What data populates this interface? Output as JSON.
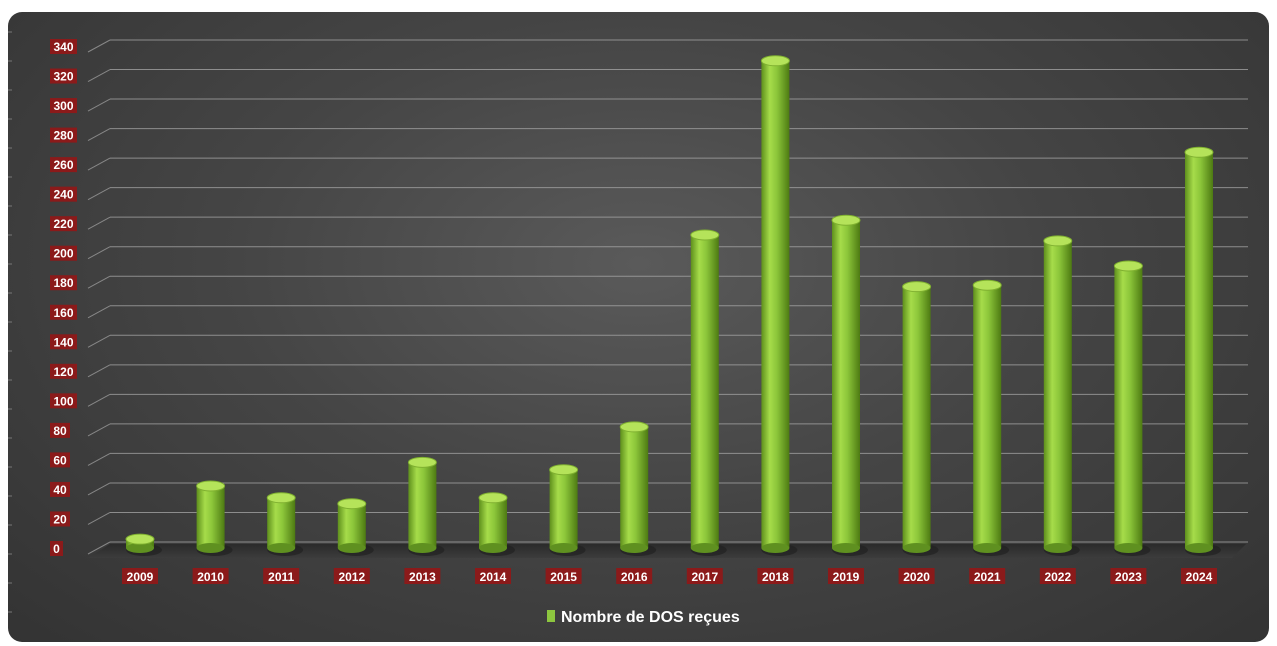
{
  "chart_data": {
    "type": "bar",
    "style": "3d-cylinder",
    "categories": [
      "2009",
      "2010",
      "2011",
      "2012",
      "2013",
      "2014",
      "2015",
      "2016",
      "2017",
      "2018",
      "2019",
      "2020",
      "2021",
      "2022",
      "2023",
      "2024"
    ],
    "series": [
      {
        "name": "Nombre de DOS reçues",
        "color": "#8dc63f",
        "values": [
          6,
          42,
          34,
          30,
          58,
          34,
          53,
          82,
          212,
          330,
          222,
          177,
          178,
          208,
          191,
          268
        ]
      }
    ],
    "yticks": [
      0,
      20,
      40,
      60,
      80,
      100,
      120,
      140,
      160,
      180,
      200,
      220,
      240,
      260,
      280,
      300,
      320,
      340
    ],
    "ylim": [
      0,
      340
    ],
    "grid": true,
    "legend_position": "bottom",
    "label_bg_color": "#8b1a1a",
    "background_color": "#444444"
  }
}
